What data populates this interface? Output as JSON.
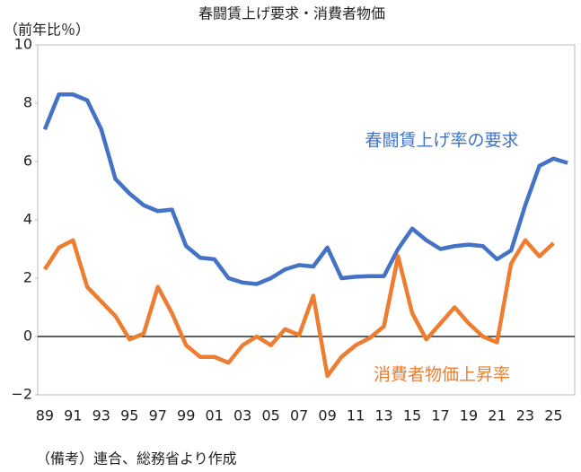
{
  "chart_data": {
    "type": "line",
    "title": "春闘賃上げ要求・消費者物価",
    "y_label": "（前年比％）",
    "note": "（備考）連合、総務省より作成",
    "categories": [
      "89",
      null,
      "91",
      null,
      "93",
      null,
      "95",
      null,
      "97",
      null,
      "99",
      null,
      "01",
      null,
      "03",
      null,
      "05",
      null,
      "07",
      null,
      "09",
      null,
      "11",
      null,
      "13",
      null,
      "15",
      null,
      "17",
      null,
      "19",
      null,
      "21",
      null,
      "23",
      null,
      "25",
      null
    ],
    "series": [
      {
        "name": "春闘賃上げ率の要求",
        "color": "#4472c4",
        "values": [
          7.1,
          8.3,
          8.3,
          8.1,
          7.1,
          5.4,
          4.9,
          4.5,
          4.3,
          4.35,
          3.1,
          2.7,
          2.65,
          2.0,
          1.85,
          1.8,
          2.0,
          2.3,
          2.45,
          2.4,
          3.05,
          2.0,
          2.05,
          2.07,
          2.07,
          3.0,
          3.7,
          3.3,
          3.0,
          3.1,
          3.15,
          3.1,
          2.65,
          2.95,
          4.5,
          5.85,
          6.1,
          5.95
        ]
      },
      {
        "name": "消費者物価上昇率",
        "color": "#ed7d31",
        "values": [
          2.3,
          3.05,
          3.3,
          1.7,
          1.2,
          0.7,
          -0.1,
          0.1,
          1.7,
          0.8,
          -0.3,
          -0.7,
          -0.7,
          -0.9,
          -0.3,
          0.0,
          -0.3,
          0.25,
          0.05,
          1.4,
          -1.35,
          -0.7,
          -0.3,
          -0.05,
          0.35,
          2.75,
          0.8,
          -0.1,
          0.45,
          1.0,
          0.45,
          0.0,
          -0.2,
          2.5,
          3.3,
          2.75,
          3.2,
          null
        ]
      }
    ],
    "ylim": [
      -2,
      10
    ],
    "yticks": [
      {
        "value": -2,
        "label": "−2"
      },
      0,
      2,
      4,
      6,
      8,
      10
    ],
    "grid": false
  }
}
